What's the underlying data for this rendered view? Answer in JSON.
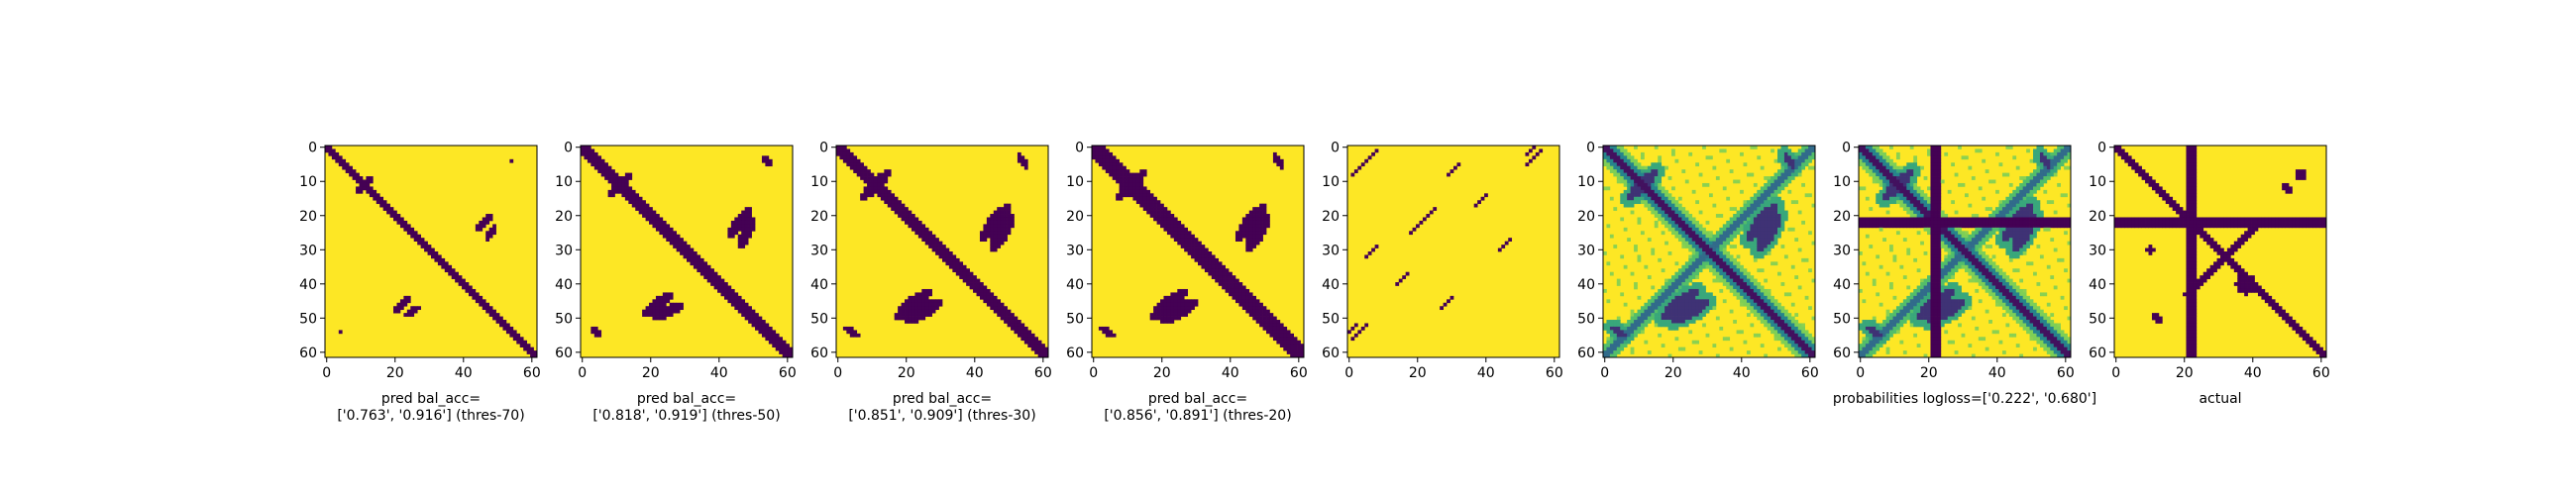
{
  "chart_data": [
    {
      "type": "heatmap",
      "panel": "pred-thres-70",
      "xlabel_lines": [
        "pred bal_acc=",
        "['0.763', '0.916'] (thres-70)"
      ],
      "xticks": [
        0,
        20,
        40,
        60
      ],
      "yticks": [
        0,
        10,
        20,
        30,
        40,
        50,
        60
      ],
      "xlim": [
        0,
        61
      ],
      "ylim": [
        61,
        0
      ],
      "grid_size": 62,
      "colormap": {
        "low": "#440154",
        "high": "#fde725"
      },
      "structure": {
        "kind": "binary",
        "diag_width": 1.6,
        "anti_diag": false,
        "blobs": "small",
        "cross": false
      }
    },
    {
      "type": "heatmap",
      "panel": "pred-thres-50",
      "xlabel_lines": [
        "pred bal_acc=",
        "['0.818', '0.919'] (thres-50)"
      ],
      "xticks": [
        0,
        20,
        40,
        60
      ],
      "yticks": [
        0,
        10,
        20,
        30,
        40,
        50,
        60
      ],
      "xlim": [
        0,
        61
      ],
      "ylim": [
        61,
        0
      ],
      "grid_size": 62,
      "colormap": {
        "low": "#440154",
        "high": "#fde725"
      },
      "structure": {
        "kind": "binary",
        "diag_width": 2.2,
        "anti_diag": false,
        "blobs": "medium",
        "cross": false
      }
    },
    {
      "type": "heatmap",
      "panel": "pred-thres-30",
      "xlabel_lines": [
        "pred bal_acc=",
        "['0.851', '0.909'] (thres-30)"
      ],
      "xticks": [
        0,
        20,
        40,
        60
      ],
      "yticks": [
        0,
        10,
        20,
        30,
        40,
        50,
        60
      ],
      "xlim": [
        0,
        61
      ],
      "ylim": [
        61,
        0
      ],
      "grid_size": 62,
      "colormap": {
        "low": "#440154",
        "high": "#fde725"
      },
      "structure": {
        "kind": "binary",
        "diag_width": 2.8,
        "anti_diag": false,
        "blobs": "large",
        "cross": false
      }
    },
    {
      "type": "heatmap",
      "panel": "pred-thres-20",
      "xlabel_lines": [
        "pred bal_acc=",
        "['0.856', '0.891'] (thres-20)"
      ],
      "xticks": [
        0,
        20,
        40,
        60
      ],
      "yticks": [
        0,
        10,
        20,
        30,
        40,
        50,
        60
      ],
      "xlim": [
        0,
        61
      ],
      "ylim": [
        61,
        0
      ],
      "grid_size": 62,
      "colormap": {
        "low": "#440154",
        "high": "#fde725"
      },
      "structure": {
        "kind": "binary",
        "diag_width": 3.2,
        "anti_diag": false,
        "blobs": "large",
        "cross": false
      }
    },
    {
      "type": "heatmap",
      "panel": "sparse-pred",
      "xlabel_lines": [],
      "xticks": [
        0,
        20,
        40,
        60
      ],
      "yticks": [
        0,
        10,
        20,
        30,
        40,
        50,
        60
      ],
      "xlim": [
        0,
        61
      ],
      "ylim": [
        61,
        0
      ],
      "grid_size": 62,
      "colormap": {
        "low": "#440154",
        "high": "#fde725"
      },
      "structure": {
        "kind": "sparse"
      }
    },
    {
      "type": "heatmap",
      "panel": "probabilities-a",
      "xlabel_lines": [],
      "xticks": [
        0,
        20,
        40,
        60
      ],
      "yticks": [
        0,
        10,
        20,
        30,
        40,
        50,
        60
      ],
      "xlim": [
        0,
        61
      ],
      "ylim": [
        61,
        0
      ],
      "grid_size": 62,
      "colormap": {
        "low": "#440154",
        "mid": "#21918c",
        "high": "#fde725"
      },
      "structure": {
        "kind": "prob",
        "cross": false
      }
    },
    {
      "type": "heatmap",
      "panel": "probabilities-b",
      "xlabel_lines": [
        "probabilities logloss=['0.222', '0.680']"
      ],
      "xticks": [
        0,
        20,
        40,
        60
      ],
      "yticks": [
        0,
        10,
        20,
        30,
        40,
        50,
        60
      ],
      "xlim": [
        0,
        61
      ],
      "ylim": [
        61,
        0
      ],
      "grid_size": 62,
      "colormap": {
        "low": "#440154",
        "mid": "#21918c",
        "high": "#fde725"
      },
      "structure": {
        "kind": "prob",
        "cross": true,
        "cross_index": 22
      }
    },
    {
      "type": "heatmap",
      "panel": "actual",
      "xlabel_lines": [
        "actual"
      ],
      "xticks": [
        0,
        20,
        40,
        60
      ],
      "yticks": [
        0,
        10,
        20,
        30,
        40,
        50,
        60
      ],
      "xlim": [
        0,
        61
      ],
      "ylim": [
        61,
        0
      ],
      "grid_size": 62,
      "colormap": {
        "low": "#440154",
        "high": "#fde725"
      },
      "structure": {
        "kind": "actual",
        "cross": true,
        "cross_index": 22
      }
    }
  ]
}
